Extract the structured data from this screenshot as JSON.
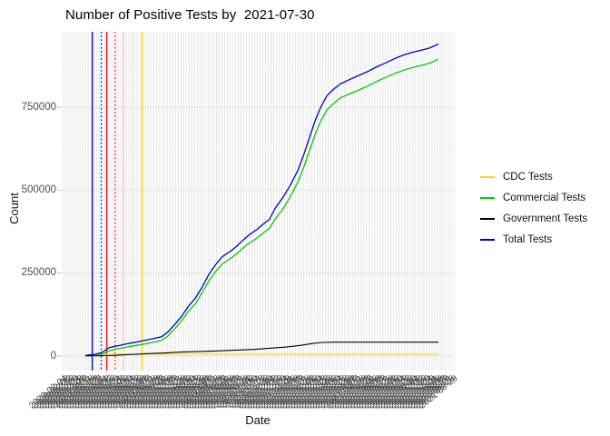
{
  "title": "Number of Positive Tests by  2021-07-30",
  "x_axis": {
    "label": "Date",
    "tick_start_date": "2020-02-04",
    "tick_interval_days": 4,
    "tick_count": 144
  },
  "y_axis": {
    "label": "Count",
    "ticks": [
      {
        "v": 0,
        "label": "0"
      },
      {
        "v": 250000,
        "label": "250000"
      },
      {
        "v": 500000,
        "label": "500000"
      },
      {
        "v": 750000,
        "label": "750000"
      }
    ],
    "minor_ticks": [
      125000,
      375000,
      625000,
      875000
    ]
  },
  "legend": {
    "items": [
      {
        "label": "CDC Tests",
        "color": "#FFD700"
      },
      {
        "label": "Commercial Tests",
        "color": "#00CD00"
      },
      {
        "label": "Government Tests",
        "color": "#000000"
      },
      {
        "label": "Total Tests",
        "color": "#0000CD"
      }
    ]
  },
  "chart_data": {
    "type": "line",
    "title": "Number of Positive Tests by  2021-07-30",
    "xlabel": "Date",
    "ylabel": "Count",
    "x_range_dates": [
      "2020-03-07",
      "2021-07-30"
    ],
    "ylim": [
      -44000,
      977000
    ],
    "grid": "on",
    "legend_position": "right",
    "series": [
      {
        "name": "CDC Tests",
        "color": "#FFD700",
        "width": 1.2,
        "points": [
          [
            "2020-03-07",
            1000
          ],
          [
            "2020-03-15",
            4000
          ],
          [
            "2020-03-25",
            5500
          ],
          [
            "2020-04-15",
            6000
          ],
          [
            "2021-07-30",
            6000
          ]
        ]
      },
      {
        "name": "Commercial Tests",
        "color": "#00CD00",
        "width": 1.3,
        "points": [
          [
            "2020-03-23",
            1000
          ],
          [
            "2020-04-01",
            6000
          ],
          [
            "2020-04-10",
            16000
          ],
          [
            "2020-04-23",
            22000
          ],
          [
            "2020-05-06",
            27000
          ],
          [
            "2020-05-19",
            32000
          ],
          [
            "2020-06-02",
            37000
          ],
          [
            "2020-06-14",
            42000
          ],
          [
            "2020-06-25",
            47000
          ],
          [
            "2020-07-04",
            60000
          ],
          [
            "2020-07-14",
            82000
          ],
          [
            "2020-07-24",
            106000
          ],
          [
            "2020-08-03",
            135000
          ],
          [
            "2020-08-13",
            158000
          ],
          [
            "2020-08-22",
            188000
          ],
          [
            "2020-09-02",
            228000
          ],
          [
            "2020-09-12",
            257000
          ],
          [
            "2020-09-21",
            278000
          ],
          [
            "2020-10-02",
            293000
          ],
          [
            "2020-10-11",
            307000
          ],
          [
            "2020-10-21",
            326000
          ],
          [
            "2020-10-30",
            341000
          ],
          [
            "2020-11-10",
            356000
          ],
          [
            "2020-11-19",
            371000
          ],
          [
            "2020-11-28",
            385000
          ],
          [
            "2020-12-06",
            412000
          ],
          [
            "2020-12-18",
            445000
          ],
          [
            "2020-12-28",
            480000
          ],
          [
            "2021-01-08",
            525000
          ],
          [
            "2021-01-17",
            572000
          ],
          [
            "2021-01-25",
            620000
          ],
          [
            "2021-02-02",
            668000
          ],
          [
            "2021-02-10",
            708000
          ],
          [
            "2021-02-19",
            742000
          ],
          [
            "2021-03-01",
            762000
          ],
          [
            "2021-03-10",
            778000
          ],
          [
            "2021-03-23",
            790000
          ],
          [
            "2021-04-06",
            802000
          ],
          [
            "2021-04-19",
            814000
          ],
          [
            "2021-05-02",
            828000
          ],
          [
            "2021-05-15",
            840000
          ],
          [
            "2021-05-28",
            852000
          ],
          [
            "2021-06-10",
            862000
          ],
          [
            "2021-06-23",
            870000
          ],
          [
            "2021-07-07",
            877000
          ],
          [
            "2021-07-16",
            882000
          ],
          [
            "2021-07-23",
            888000
          ],
          [
            "2021-07-30",
            895000
          ]
        ]
      },
      {
        "name": "Government Tests",
        "color": "#000000",
        "width": 1.1,
        "points": [
          [
            "2020-03-07",
            500
          ],
          [
            "2020-04-10",
            1500
          ],
          [
            "2020-05-06",
            4000
          ],
          [
            "2020-06-02",
            7000
          ],
          [
            "2020-06-27",
            9000
          ],
          [
            "2020-07-24",
            12000
          ],
          [
            "2020-08-22",
            14000
          ],
          [
            "2020-09-18",
            16000
          ],
          [
            "2020-10-11",
            18000
          ],
          [
            "2020-11-05",
            20000
          ],
          [
            "2020-12-02",
            24000
          ],
          [
            "2020-12-22",
            27000
          ],
          [
            "2021-01-11",
            32000
          ],
          [
            "2021-01-30",
            38000
          ],
          [
            "2021-02-12",
            41000
          ],
          [
            "2021-03-01",
            42000
          ],
          [
            "2021-07-30",
            42000
          ]
        ]
      },
      {
        "name": "Total Tests",
        "color": "#0000CD",
        "width": 1.3,
        "points": [
          [
            "2020-03-07",
            2000
          ],
          [
            "2020-03-21",
            5000
          ],
          [
            "2020-04-01",
            12000
          ],
          [
            "2020-04-10",
            25000
          ],
          [
            "2020-04-23",
            31000
          ],
          [
            "2020-05-06",
            37000
          ],
          [
            "2020-05-19",
            42000
          ],
          [
            "2020-06-02",
            48000
          ],
          [
            "2020-06-14",
            53000
          ],
          [
            "2020-06-25",
            58000
          ],
          [
            "2020-07-04",
            72000
          ],
          [
            "2020-07-14",
            95000
          ],
          [
            "2020-07-24",
            120000
          ],
          [
            "2020-08-03",
            150000
          ],
          [
            "2020-08-13",
            175000
          ],
          [
            "2020-08-22",
            205000
          ],
          [
            "2020-09-02",
            248000
          ],
          [
            "2020-09-12",
            278000
          ],
          [
            "2020-09-21",
            300000
          ],
          [
            "2020-10-02",
            315000
          ],
          [
            "2020-10-11",
            330000
          ],
          [
            "2020-10-21",
            350000
          ],
          [
            "2020-10-30",
            366000
          ],
          [
            "2020-11-10",
            382000
          ],
          [
            "2020-11-19",
            398000
          ],
          [
            "2020-11-28",
            412000
          ],
          [
            "2020-12-06",
            445000
          ],
          [
            "2020-12-18",
            480000
          ],
          [
            "2020-12-28",
            515000
          ],
          [
            "2021-01-08",
            560000
          ],
          [
            "2021-01-17",
            610000
          ],
          [
            "2021-01-25",
            660000
          ],
          [
            "2021-02-02",
            710000
          ],
          [
            "2021-02-10",
            750000
          ],
          [
            "2021-02-19",
            785000
          ],
          [
            "2021-03-01",
            805000
          ],
          [
            "2021-03-10",
            820000
          ],
          [
            "2021-03-23",
            833000
          ],
          [
            "2021-04-06",
            846000
          ],
          [
            "2021-04-19",
            858000
          ],
          [
            "2021-05-02",
            872000
          ],
          [
            "2021-05-15",
            884000
          ],
          [
            "2021-05-28",
            897000
          ],
          [
            "2021-06-10",
            908000
          ],
          [
            "2021-06-23",
            916000
          ],
          [
            "2021-07-07",
            923000
          ],
          [
            "2021-07-16",
            928000
          ],
          [
            "2021-07-23",
            934000
          ],
          [
            "2021-07-30",
            941000
          ]
        ]
      }
    ],
    "vlines": [
      {
        "date": "2020-03-17",
        "color": "#0000EE",
        "style": "solid"
      },
      {
        "date": "2020-03-30",
        "color": "#0000EE",
        "style": "dotted"
      },
      {
        "date": "2020-04-07",
        "color": "#FF0000",
        "style": "solid"
      },
      {
        "date": "2020-04-19",
        "color": "#FF0000",
        "style": "dotted"
      },
      {
        "date": "2020-05-01",
        "color": "#FFB6C1",
        "style": "solid"
      },
      {
        "date": "2020-05-14",
        "color": "#FFC9D4",
        "style": "dotted"
      },
      {
        "date": "2020-05-28",
        "color": "#FFD700",
        "style": "solid"
      }
    ]
  }
}
